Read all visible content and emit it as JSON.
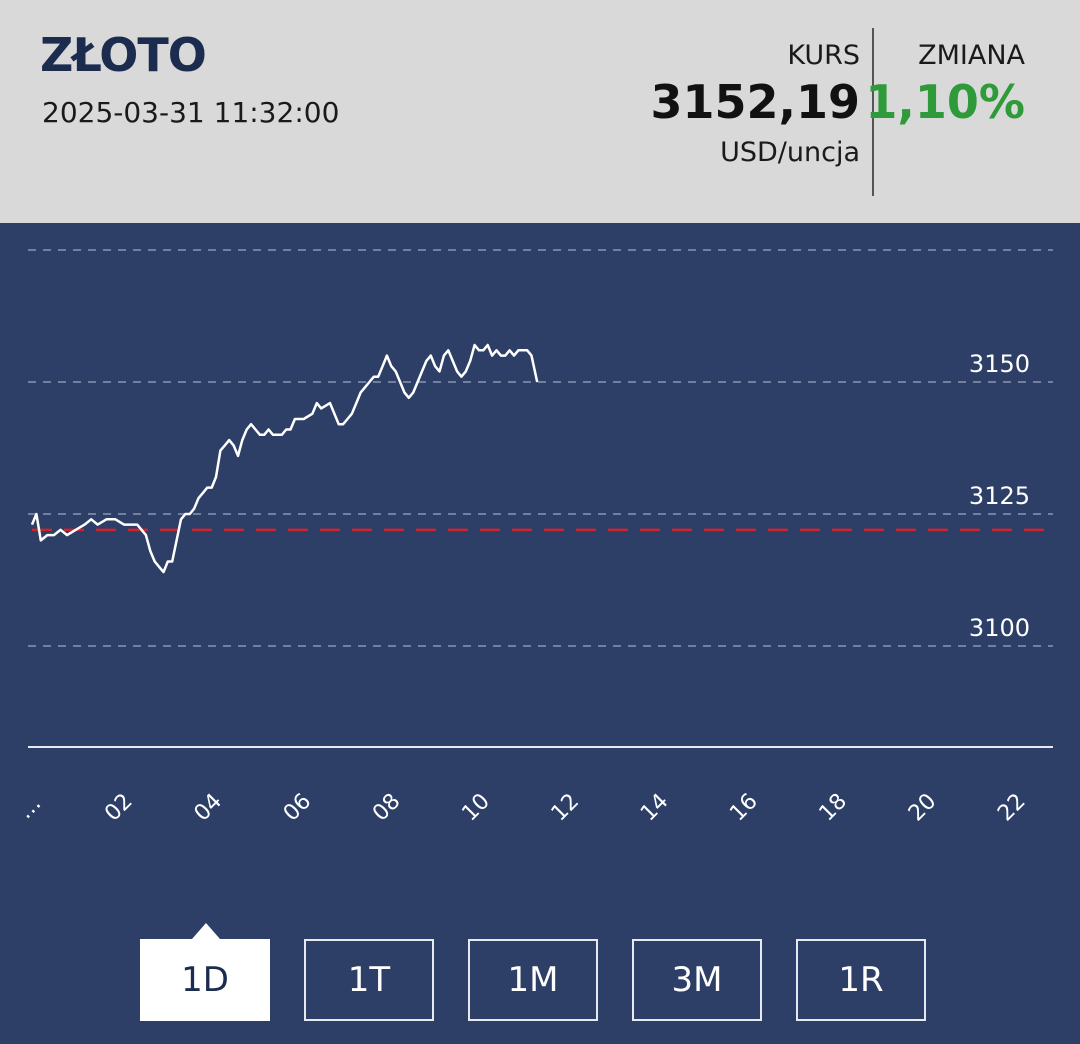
{
  "header": {
    "title": "ZŁOTO",
    "datetime": "2025-03-31 11:32:00",
    "kurs_label": "KURS",
    "kurs_value": "3152,19",
    "kurs_unit": "USD/uncja",
    "zmiana_label": "ZMIANA",
    "zmiana_value": "1,10%"
  },
  "colors": {
    "header_bg": "#d9d9d9",
    "chart_bg": "#2d3f66",
    "title": "#1c2c4e",
    "change_positive": "#2e9a3a",
    "reference_line": "#d0242b",
    "price_line": "#ffffff"
  },
  "tabs": [
    {
      "label": "1D",
      "active": true
    },
    {
      "label": "1T",
      "active": false
    },
    {
      "label": "1M",
      "active": false
    },
    {
      "label": "3M",
      "active": false
    },
    {
      "label": "1R",
      "active": false
    }
  ],
  "chart_data": {
    "type": "line",
    "title": "",
    "xlabel": "",
    "ylabel": "",
    "x_tick_labels": [
      "…",
      "02",
      "04",
      "06",
      "08",
      "10",
      "12",
      "14",
      "16",
      "18",
      "20",
      "22"
    ],
    "y_ticks": [
      3100,
      3125,
      3150
    ],
    "xlim": [
      0,
      23.3
    ],
    "ylim": [
      3075,
      3175
    ],
    "grid": true,
    "reference_value": 3122,
    "series": [
      {
        "x": [
          0.0,
          0.1,
          0.2,
          0.35,
          0.5,
          0.65,
          0.8,
          1.0,
          1.2,
          1.35,
          1.5,
          1.7,
          1.9,
          2.1,
          2.3,
          2.4,
          2.5,
          2.6,
          2.7,
          2.8,
          2.9,
          3.0,
          3.1,
          3.2,
          3.3,
          3.4,
          3.5,
          3.6,
          3.7,
          3.8,
          3.9,
          4.0,
          4.1,
          4.2,
          4.3,
          4.4,
          4.5,
          4.6,
          4.7,
          4.8,
          4.9,
          5.0,
          5.1,
          5.2,
          5.3,
          5.4,
          5.5,
          5.6,
          5.7,
          5.8,
          5.9,
          6.0,
          6.2,
          6.4,
          6.5,
          6.6,
          6.8,
          7.0,
          7.1,
          7.2,
          7.3,
          7.4,
          7.5,
          7.6,
          7.7,
          7.8,
          7.9,
          8.0,
          8.1,
          8.2,
          8.3,
          8.4,
          8.5,
          8.6,
          8.7,
          8.8,
          8.9,
          9.0,
          9.1,
          9.2,
          9.3,
          9.4,
          9.5,
          9.6,
          9.7,
          9.8,
          9.9,
          10.0,
          10.1,
          10.2,
          10.3,
          10.4,
          10.5,
          10.6,
          10.7,
          10.8,
          10.9,
          11.0,
          11.1,
          11.2,
          11.3,
          11.4,
          11.53
        ],
        "values": [
          3123,
          3125,
          3120,
          3121,
          3121,
          3122,
          3121,
          3122,
          3123,
          3124,
          3123,
          3124,
          3124,
          3123,
          3123,
          3123,
          3122,
          3121,
          3118,
          3116,
          3115,
          3114,
          3116,
          3116,
          3120,
          3124,
          3125,
          3125,
          3126,
          3128,
          3129,
          3130,
          3130,
          3132,
          3137,
          3138,
          3139,
          3138,
          3136,
          3139,
          3141,
          3142,
          3141,
          3140,
          3140,
          3141,
          3140,
          3140,
          3140,
          3141,
          3141,
          3143,
          3143,
          3144,
          3146,
          3145,
          3146,
          3142,
          3142,
          3143,
          3144,
          3146,
          3148,
          3149,
          3150,
          3151,
          3151,
          3153,
          3155,
          3153,
          3152,
          3150,
          3148,
          3147,
          3148,
          3150,
          3152,
          3154,
          3155,
          3153,
          3152,
          3155,
          3156,
          3154,
          3152,
          3151,
          3152,
          3154,
          3157,
          3156,
          3156,
          3157,
          3155,
          3156,
          3155,
          3155,
          3156,
          3155,
          3156,
          3156,
          3156,
          3155,
          3150
        ]
      }
    ]
  }
}
